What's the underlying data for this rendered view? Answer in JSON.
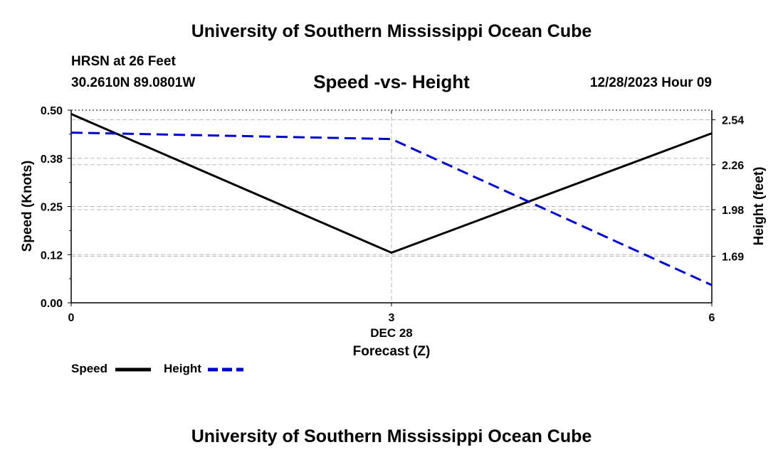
{
  "header": {
    "title": "University of Southern Mississippi Ocean Cube",
    "station": "HRSN at 26 Feet",
    "coordinates": "30.2610N  89.0801W",
    "chart_title": "Speed -vs- Height",
    "datetime": "12/28/2023 Hour 09"
  },
  "footer": {
    "title": "University of Southern Mississippi Ocean Cube"
  },
  "legend": {
    "speed_label": "Speed",
    "height_label": "Height"
  },
  "colors": {
    "speed": "#000000",
    "height": "#0000cc",
    "grid": "#bbbbbb"
  },
  "chart_data": {
    "type": "line",
    "title": "Speed -vs- Height",
    "xlabel": "Forecast (Z)",
    "xsublabel": "DEC 28",
    "ylabel": "Speed (Knots)",
    "y2label": "Height (feet)",
    "xlim": [
      0,
      6
    ],
    "ylim": [
      0,
      0.5
    ],
    "y2lim": [
      1.4,
      2.6
    ],
    "x_ticks": [
      0,
      3,
      6
    ],
    "x_tick_labels": [
      "0",
      "3",
      "6"
    ],
    "y_ticks": [
      0,
      0.125,
      0.25,
      0.375,
      0.5
    ],
    "y_tick_labels": [
      "0.00",
      "0.12",
      "0.25",
      "0.38",
      "0.50"
    ],
    "y2_ticks": [
      1.69,
      1.98,
      2.26,
      2.54
    ],
    "y2_tick_labels": [
      "1.69",
      "1.98",
      "2.26",
      "2.54"
    ],
    "series": [
      {
        "name": "Speed",
        "axis": "left",
        "style": "solid",
        "x": [
          0,
          3,
          6
        ],
        "values": [
          0.49,
          0.13,
          0.44
        ]
      },
      {
        "name": "Height",
        "axis": "right",
        "style": "dashed",
        "x": [
          0,
          3,
          6
        ],
        "values": [
          2.46,
          2.42,
          1.51
        ]
      }
    ]
  }
}
